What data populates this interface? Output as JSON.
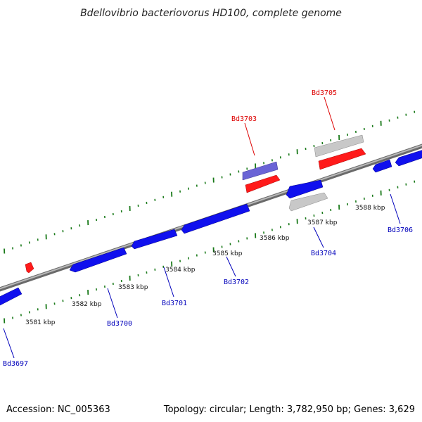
{
  "title": "Bdellovibrio bacteriovorus HD100, complete genome",
  "footer": {
    "accession": "Accession: NC_005363",
    "summary": "Topology: circular; Length: 3,782,950 bp; Genes: 3,629"
  },
  "colors": {
    "backbone": "#8a8a8a",
    "tick": "#1a7a1a",
    "gene_forward_red": "#ff1a1a",
    "gene_reverse_blue": "#1010ee",
    "gene_grey": "#c8c8c8",
    "gene_purple": "#6a64d6",
    "label_red": "#dd0000",
    "label_blue": "#0000bb"
  },
  "kbp_labels": [
    "3581 kbp",
    "3582 kbp",
    "3583 kbp",
    "3584 kbp",
    "3585 kbp",
    "3586 kbp",
    "3587 kbp",
    "3588 kbp"
  ],
  "gene_labels": [
    {
      "name": "Bd3697",
      "color": "blue"
    },
    {
      "name": "Bd3700",
      "color": "blue"
    },
    {
      "name": "Bd3701",
      "color": "blue"
    },
    {
      "name": "Bd3702",
      "color": "blue"
    },
    {
      "name": "Bd3703",
      "color": "red"
    },
    {
      "name": "Bd3704",
      "color": "blue"
    },
    {
      "name": "Bd3705",
      "color": "red"
    },
    {
      "name": "Bd3706",
      "color": "blue"
    }
  ]
}
